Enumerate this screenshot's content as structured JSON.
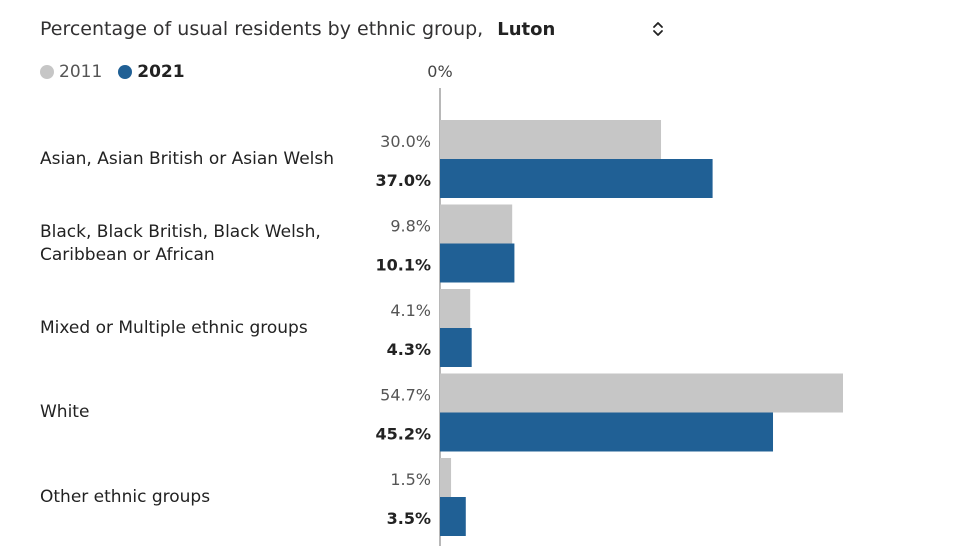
{
  "header": {
    "title": "Percentage of usual residents by ethnic group,",
    "area": "Luton"
  },
  "legend": {
    "items": [
      {
        "label": "2011",
        "color": "#c6c6c6"
      },
      {
        "label": "2021",
        "color": "#206095"
      }
    ]
  },
  "colors": {
    "bar_2011": "#c6c6c6",
    "bar_2021": "#206095",
    "axis": "#707070",
    "label_2011": "#555555",
    "label_2021": "#222222"
  },
  "chart_data": {
    "type": "bar",
    "orientation": "horizontal",
    "title": "Percentage of usual residents by ethnic group, Luton",
    "categories": [
      "Asian, Asian British or Asian Welsh",
      "Black, Black British, Black Welsh, Caribbean or African",
      "Mixed or Multiple ethnic groups",
      "White",
      "Other ethnic groups"
    ],
    "series": [
      {
        "name": "2011",
        "values": [
          30.0,
          9.8,
          4.1,
          54.7,
          1.5
        ],
        "labels": [
          "30.0%",
          "9.8%",
          "4.1%",
          "54.7%",
          "1.5%"
        ]
      },
      {
        "name": "2021",
        "values": [
          37.0,
          10.1,
          4.3,
          45.2,
          3.5
        ],
        "labels": [
          "37.0%",
          "10.1%",
          "4.3%",
          "45.2%",
          "3.5%"
        ]
      }
    ],
    "axis_tick_label": "0%",
    "xlim": [
      0,
      54.7
    ],
    "grid": false,
    "legend_placement": "top-left"
  }
}
